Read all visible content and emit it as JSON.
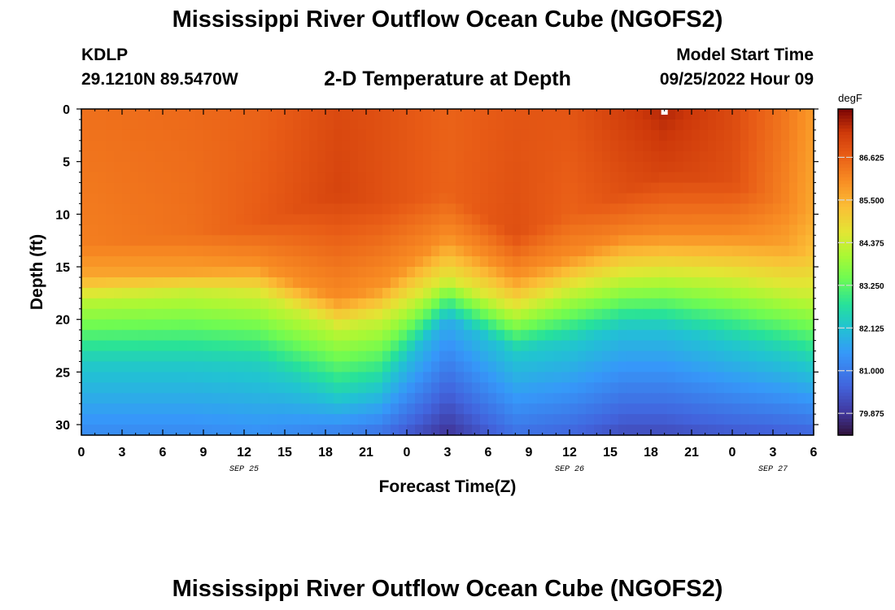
{
  "header": {
    "title": "Mississippi River Outflow Ocean Cube (NGOFS2)",
    "station_id": "KDLP",
    "station_coords": "29.1210N  89.5470W",
    "subtitle": "2-D Temperature at Depth",
    "model_start_label": "Model Start Time",
    "model_start_value": "09/25/2022 Hour 09"
  },
  "footer": {
    "title": "Mississippi River Outflow Ocean Cube (NGOFS2)"
  },
  "chart_data": {
    "type": "heatmap",
    "title": "2-D Temperature at Depth",
    "xlabel": "Forecast Time(Z)",
    "ylabel": "Depth (ft)",
    "units": "degF",
    "x_hours_range": [
      0,
      54
    ],
    "x_ticks": [
      "0",
      "3",
      "6",
      "9",
      "12",
      "15",
      "18",
      "21",
      "0",
      "3",
      "6",
      "9",
      "12",
      "15",
      "18",
      "21",
      "0",
      "3",
      "6"
    ],
    "date_labels": [
      {
        "text": "SEP 25",
        "hour": 12
      },
      {
        "text": "SEP 26",
        "hour": 36
      },
      {
        "text": "SEP 27",
        "hour": 51
      }
    ],
    "y_range_ft": [
      0,
      31
    ],
    "y_ticks": [
      "0",
      "5",
      "10",
      "15",
      "20",
      "25",
      "30"
    ],
    "y_tick_values": [
      0,
      5,
      10,
      15,
      20,
      25,
      30
    ],
    "colorbar": {
      "min": 79.3,
      "max": 87.9,
      "tick_values": [
        86.625,
        85.5,
        84.375,
        83.25,
        82.125,
        81.0,
        79.875
      ],
      "tick_labels": [
        "86.625",
        "85.500",
        "84.375",
        "83.250",
        "82.125",
        "81.000",
        "79.875"
      ]
    },
    "profile_keypoints": [
      {
        "hour": 0,
        "t0": 86.4,
        "d1": 13,
        "t1": 86.2,
        "d2": 16,
        "t2": 85.6,
        "d3": 18,
        "t3": 84.3,
        "d4": 24,
        "t4": 82.3,
        "t5": 81.2
      },
      {
        "hour": 8,
        "t0": 86.5,
        "d1": 12,
        "t1": 86.4,
        "d2": 15.5,
        "t2": 85.7,
        "d3": 17.5,
        "t3": 84.3,
        "d4": 24,
        "t4": 82.3,
        "t5": 81.2
      },
      {
        "hour": 13,
        "t0": 86.6,
        "d1": 11,
        "t1": 86.7,
        "d2": 15,
        "t2": 85.9,
        "d3": 17.5,
        "t3": 84.5,
        "d4": 24,
        "t4": 82.4,
        "t5": 81.3
      },
      {
        "hour": 19,
        "t0": 87.0,
        "d1": 8,
        "t1": 87.1,
        "d2": 18,
        "t2": 86.0,
        "d3": 21,
        "t3": 84.3,
        "d4": 27,
        "t4": 82.4,
        "t5": 81.0
      },
      {
        "hour": 22,
        "t0": 86.9,
        "d1": 9,
        "t1": 86.9,
        "d2": 17,
        "t2": 85.9,
        "d3": 20,
        "t3": 84.4,
        "d4": 26,
        "t4": 82.4,
        "t5": 80.8
      },
      {
        "hour": 27,
        "t0": 86.6,
        "d1": 8,
        "t1": 86.6,
        "d2": 12,
        "t2": 86.0,
        "d3": 16,
        "t3": 84.6,
        "d4": 20,
        "t4": 81.8,
        "t5": 79.8
      },
      {
        "hour": 32,
        "t0": 86.8,
        "d1": 12,
        "t1": 86.9,
        "d2": 16,
        "t2": 85.9,
        "d3": 19,
        "t3": 84.5,
        "d4": 23,
        "t4": 82.3,
        "t5": 80.8
      },
      {
        "hour": 36,
        "t0": 86.8,
        "d1": 10,
        "t1": 86.6,
        "d2": 14,
        "t2": 86.0,
        "d3": 17.5,
        "t3": 84.3,
        "d4": 22,
        "t4": 82.3,
        "t5": 80.6
      },
      {
        "hour": 40,
        "t0": 87.2,
        "d1": 8,
        "t1": 86.9,
        "d2": 12,
        "t2": 86.1,
        "d3": 16,
        "t3": 84.4,
        "d4": 21,
        "t4": 82.1,
        "t5": 80.2
      },
      {
        "hour": 43,
        "t0": 87.5,
        "d1": 6,
        "t1": 87.1,
        "d2": 12,
        "t2": 86.0,
        "d3": 16,
        "t3": 84.3,
        "d4": 21,
        "t4": 82.1,
        "t5": 80.2
      },
      {
        "hour": 48,
        "t0": 87.0,
        "d1": 7,
        "t1": 86.9,
        "d2": 12,
        "t2": 86.0,
        "d3": 16,
        "t3": 84.5,
        "d4": 22,
        "t4": 82.3,
        "t5": 80.4
      },
      {
        "hour": 52,
        "t0": 86.3,
        "d1": 9,
        "t1": 86.1,
        "d2": 13,
        "t2": 85.7,
        "d3": 17,
        "t3": 84.5,
        "d4": 23,
        "t4": 82.4,
        "t5": 80.5
      },
      {
        "hour": 54,
        "t0": 85.8,
        "d1": 10,
        "t1": 85.6,
        "d2": 14,
        "t2": 85.2,
        "d3": 18,
        "t3": 84.3,
        "d4": 24,
        "t4": 82.4,
        "t5": 80.6
      }
    ],
    "marker": {
      "hour": 43,
      "depth_ft": 0.3
    }
  }
}
